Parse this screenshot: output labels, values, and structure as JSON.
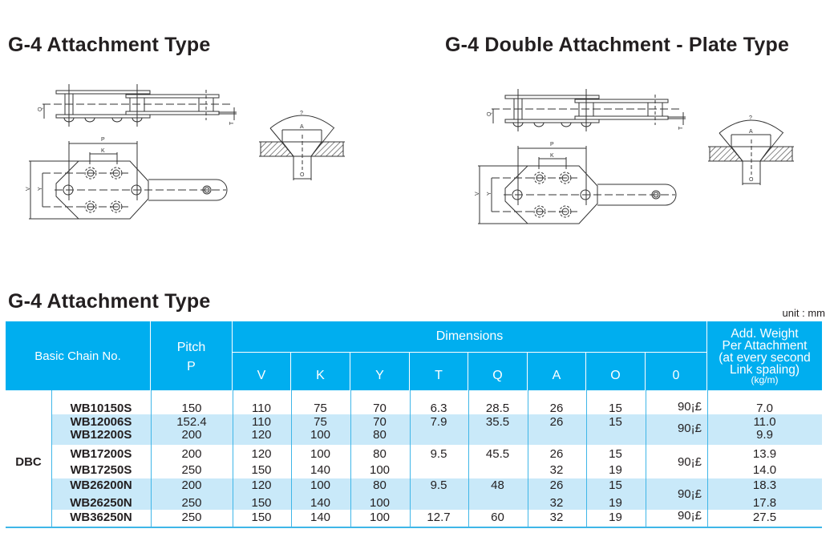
{
  "titles": {
    "drawing_left": "G-4 Attachment Type",
    "drawing_right": "G-4 Double Attachment - Plate Type",
    "table": "G-4 Attachment Type"
  },
  "drawing_labels": {
    "Q": "Q",
    "T": "T",
    "P": "P",
    "K": "K",
    "V": "V",
    "Y": "Y",
    "angle": "?",
    "A": "A",
    "O": "O"
  },
  "unit": "unit : mm",
  "colors": {
    "header": "#00aeef",
    "stripe": "#c9e9f9",
    "rule": "#3fb6e8"
  },
  "table": {
    "headers": {
      "basic_chain": "Basic Chain No.",
      "pitch_1": "Pitch",
      "pitch_2": "P",
      "dimensions": "Dimensions",
      "cols": [
        "V",
        "K",
        "Y",
        "T",
        "Q",
        "A",
        "O",
        "0"
      ],
      "weight": [
        "Add. Weight",
        "Per Attachment",
        "(at every second",
        "Link spaling)",
        "(kg/m)"
      ]
    },
    "series": "DBC",
    "groups": [
      {
        "angle": "90¡£",
        "rows": [
          {
            "model": "WB10150S",
            "pitch": "150",
            "V": "110",
            "K": "75",
            "Y": "70",
            "T": "6.3",
            "Q": "28.5",
            "A": "26",
            "O": "15",
            "weight": "7.0"
          }
        ]
      },
      {
        "angle": "90¡£",
        "rows": [
          {
            "model": "WB12006S",
            "pitch": "152.4",
            "V": "110",
            "K": "75",
            "Y": "70",
            "T": "7.9",
            "Q": "35.5",
            "A": "26",
            "O": "15",
            "weight": "11.0"
          },
          {
            "model": "WB12200S",
            "pitch": "200",
            "V": "120",
            "K": "100",
            "Y": "80",
            "T": "",
            "Q": "",
            "A": "",
            "O": "",
            "weight": "9.9"
          }
        ]
      },
      {
        "angle": "90¡£",
        "rows": [
          {
            "model": "WB17200S",
            "pitch": "200",
            "V": "120",
            "K": "100",
            "Y": "80",
            "T": "9.5",
            "Q": "45.5",
            "A": "26",
            "O": "15",
            "weight": "13.9"
          },
          {
            "model": "WB17250S",
            "pitch": "250",
            "V": "150",
            "K": "140",
            "Y": "100",
            "T": "",
            "Q": "",
            "A": "32",
            "O": "19",
            "weight": "14.0"
          }
        ]
      },
      {
        "angle": "90¡£",
        "rows": [
          {
            "model": "WB26200N",
            "pitch": "200",
            "V": "120",
            "K": "100",
            "Y": "80",
            "T": "9.5",
            "Q": "48",
            "A": "26",
            "O": "15",
            "weight": "18.3"
          },
          {
            "model": "WB26250N",
            "pitch": "250",
            "V": "150",
            "K": "140",
            "Y": "100",
            "T": "",
            "Q": "",
            "A": "32",
            "O": "19",
            "weight": "17.8"
          }
        ]
      },
      {
        "angle": "90¡£",
        "rows": [
          {
            "model": "WB36250N",
            "pitch": "250",
            "V": "150",
            "K": "140",
            "Y": "100",
            "T": "12.7",
            "Q": "60",
            "A": "32",
            "O": "19",
            "weight": "27.5"
          }
        ]
      }
    ]
  }
}
